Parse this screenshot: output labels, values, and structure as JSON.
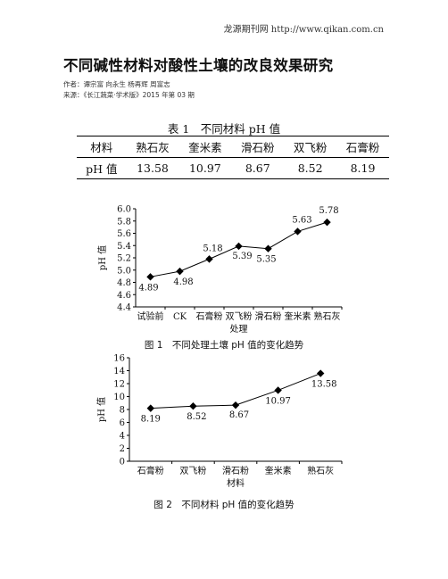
{
  "header": {
    "site": "龙源期刊网 http://www.qikan.com.cn"
  },
  "article": {
    "title": "不同碱性材料对酸性土壤的改良效果研究",
    "authors": "作者：谭宗富 向永生 杨再辉 周富志",
    "source": "来源：《长江蔬菜·学术版》2015 年第 03 期"
  },
  "table1": {
    "caption": "表 1　不同材料 pH 值",
    "header": [
      "材料",
      "熟石灰",
      "奎米素",
      "滑石粉",
      "双飞粉",
      "石膏粉"
    ],
    "row": [
      "pH 值",
      "13.58",
      "10.97",
      "8.67",
      "8.52",
      "8.19"
    ]
  },
  "figures": {
    "fig1_caption": "图 1　不同处理土壤 pH 值的变化趋势",
    "fig2_caption": "图 2　不同材料 pH 值的变化趋势"
  },
  "chart_data": [
    {
      "type": "line",
      "categories": [
        "试验前",
        "CK",
        "石膏粉",
        "双飞粉",
        "滑石粉",
        "奎米素",
        "熟石灰"
      ],
      "series": [
        {
          "values": [
            4.89,
            4.98,
            5.18,
            5.39,
            5.35,
            5.63,
            5.78
          ]
        }
      ],
      "data_labels": [
        "4.89",
        "4.98",
        "5.18",
        "5.39",
        "5.35",
        "5.63",
        "5.78"
      ],
      "yticks": [
        "4.4",
        "4.6",
        "4.8",
        "5.0",
        "5.2",
        "5.4",
        "5.6",
        "5.8",
        "6.0"
      ],
      "title": "",
      "xlabel": "处理",
      "ylabel": "pH 值",
      "ylim": [
        4.4,
        6.0
      ],
      "grid": false,
      "marker": "diamond",
      "color": "#000000"
    },
    {
      "type": "line",
      "categories": [
        "石膏粉",
        "双飞粉",
        "滑石粉",
        "奎米素",
        "熟石灰"
      ],
      "series": [
        {
          "values": [
            8.19,
            8.52,
            8.67,
            10.97,
            13.58
          ]
        }
      ],
      "data_labels": [
        "8.19",
        "8.52",
        "8.67",
        "10.97",
        "13.58"
      ],
      "yticks": [
        "0",
        "2",
        "4",
        "6",
        "8",
        "10",
        "12",
        "14",
        "16"
      ],
      "title": "",
      "xlabel": "材料",
      "ylabel": "pH 值",
      "ylim": [
        0,
        16
      ],
      "grid": false,
      "marker": "diamond",
      "color": "#000000"
    }
  ]
}
